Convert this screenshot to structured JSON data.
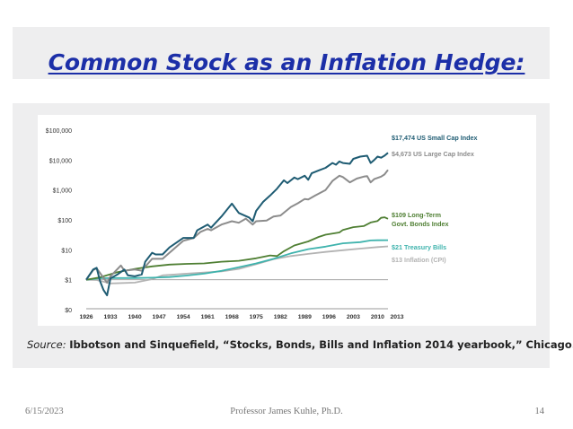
{
  "slide": {
    "title": "Common Stock as an Inflation Hedge:",
    "source_label": "Source:",
    "source_text": "Ibbotson and Sinquefield, “Stocks, Bonds, Bills and Inflation 2014  yearbook,” Chicago.",
    "footer_date": "6/15/2023",
    "footer_presenter": "Professor James Kuhle, Ph.D.",
    "footer_page": "14"
  },
  "chart_data": {
    "type": "line",
    "y_scale": "log",
    "ylim": [
      0.5,
      100000
    ],
    "xlim": [
      1926,
      2013
    ],
    "yticks": [
      {
        "value": 100000,
        "label": "$100,000"
      },
      {
        "value": 10000,
        "label": "$10,000"
      },
      {
        "value": 1000,
        "label": "$1,000"
      },
      {
        "value": 100,
        "label": "$100"
      },
      {
        "value": 10,
        "label": "$10"
      },
      {
        "value": 1,
        "label": "$1"
      },
      {
        "value": 0.1,
        "label": "$0"
      }
    ],
    "xticks": [
      "1926",
      "1933",
      "1940",
      "1947",
      "1954",
      "1961",
      "1968",
      "1975",
      "1982",
      "1989",
      "1996",
      "2003",
      "2010",
      "2013"
    ],
    "series": [
      {
        "name": "$17,474 US Small Cap Index",
        "color": "#1f5c73",
        "x": [
          1926,
          1928,
          1929,
          1930,
          1931,
          1932,
          1933,
          1935,
          1937,
          1938,
          1940,
          1942,
          1943,
          1945,
          1946,
          1948,
          1950,
          1954,
          1957,
          1958,
          1961,
          1962,
          1965,
          1968,
          1970,
          1973,
          1974,
          1975,
          1977,
          1979,
          1981,
          1983,
          1984,
          1986,
          1987,
          1989,
          1990,
          1991,
          1993,
          1995,
          1997,
          1998,
          1999,
          2000,
          2002,
          2003,
          2005,
          2007,
          2008,
          2009,
          2010,
          2011,
          2012,
          2013
        ],
        "y": [
          1,
          2.2,
          2.5,
          0.9,
          0.45,
          0.3,
          1.1,
          1.5,
          2.2,
          1.4,
          1.3,
          1.5,
          4,
          8,
          7,
          7,
          12,
          25,
          25,
          45,
          70,
          55,
          130,
          350,
          170,
          120,
          90,
          200,
          400,
          650,
          1100,
          2100,
          1700,
          2600,
          2300,
          3000,
          2200,
          3600,
          4500,
          5500,
          8000,
          7000,
          9000,
          8000,
          7500,
          11000,
          13000,
          14000,
          8000,
          10000,
          13000,
          12000,
          14000,
          17474
        ]
      },
      {
        "name": "$4,673 US Large Cap Index",
        "color": "#8c8c8c",
        "x": [
          1926,
          1928,
          1929,
          1932,
          1933,
          1936,
          1937,
          1940,
          1942,
          1945,
          1948,
          1950,
          1954,
          1957,
          1959,
          1961,
          1962,
          1965,
          1968,
          1970,
          1972,
          1974,
          1975,
          1978,
          1980,
          1982,
          1985,
          1987,
          1989,
          1990,
          1992,
          1995,
          1997,
          1999,
          2000,
          2002,
          2004,
          2006,
          2007,
          2008,
          2009,
          2011,
          2012,
          2013
        ],
        "y": [
          1,
          2.1,
          2.4,
          0.8,
          1.3,
          3,
          2,
          2.2,
          2,
          5,
          5,
          8,
          20,
          25,
          40,
          50,
          45,
          70,
          90,
          80,
          110,
          70,
          90,
          95,
          130,
          140,
          270,
          360,
          500,
          480,
          650,
          1000,
          2000,
          3000,
          2700,
          1800,
          2400,
          2800,
          2900,
          1800,
          2300,
          2800,
          3300,
          4673
        ]
      },
      {
        "name": "$109 Long-Term Govt. Bonds Index",
        "color": "#4f7f33",
        "x": [
          1926,
          1930,
          1935,
          1940,
          1945,
          1950,
          1955,
          1960,
          1965,
          1970,
          1975,
          1979,
          1981,
          1983,
          1986,
          1990,
          1993,
          1995,
          1999,
          2000,
          2003,
          2006,
          2008,
          2010,
          2011,
          2012,
          2013
        ],
        "y": [
          1,
          1.2,
          1.8,
          2.3,
          2.8,
          3.2,
          3.4,
          3.5,
          4,
          4.3,
          5.2,
          6.5,
          6.2,
          9,
          14,
          19,
          27,
          32,
          38,
          46,
          57,
          62,
          82,
          92,
          117,
          122,
          109
        ]
      },
      {
        "name": "$21 Treasury Bills",
        "color": "#3fb3ad",
        "x": [
          1926,
          1930,
          1935,
          1940,
          1945,
          1950,
          1955,
          1960,
          1965,
          1970,
          1975,
          1980,
          1985,
          1990,
          1995,
          2000,
          2005,
          2008,
          2010,
          2013
        ],
        "y": [
          1,
          1.12,
          1.14,
          1.14,
          1.17,
          1.23,
          1.38,
          1.6,
          1.98,
          2.6,
          3.5,
          5,
          7.6,
          10.5,
          12.8,
          16.5,
          18,
          20.5,
          20.8,
          21
        ]
      },
      {
        "name": "$13 Inflation (CPI)",
        "color": "#b3b3b3",
        "x": [
          1926,
          1929,
          1933,
          1940,
          1945,
          1948,
          1950,
          1955,
          1960,
          1965,
          1970,
          1975,
          1980,
          1985,
          1990,
          1995,
          2000,
          2005,
          2010,
          2013
        ],
        "y": [
          1,
          0.98,
          0.75,
          0.8,
          1.05,
          1.4,
          1.45,
          1.6,
          1.75,
          1.9,
          2.3,
          3.3,
          4.9,
          6.2,
          7.3,
          8.5,
          9.7,
          11,
          12.3,
          13
        ]
      }
    ]
  }
}
